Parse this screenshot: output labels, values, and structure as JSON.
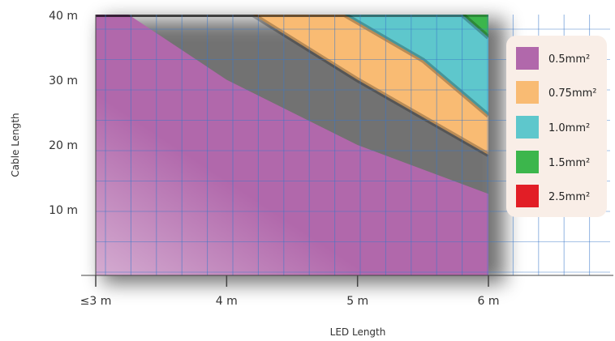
{
  "chart_data": {
    "type": "area",
    "title": "",
    "xlabel": "LED Length",
    "ylabel": "Cable Length",
    "x_ticks": [
      "≤3 m",
      "4 m",
      "5 m",
      "6 m"
    ],
    "y_ticks": [
      "10 m",
      "20 m",
      "30 m",
      "40 m"
    ],
    "xlim": [
      3,
      6
    ],
    "ylim": [
      0,
      40
    ],
    "grid": true,
    "legend_position": "right",
    "series": [
      {
        "name": "0.5mm²",
        "color": "#b168ab",
        "x": [
          3,
          3.25,
          4,
          5,
          6
        ],
        "y": [
          40,
          40,
          30,
          20,
          12.5
        ]
      },
      {
        "name": "0.75mm²",
        "color": "#f9bb73",
        "x": [
          3,
          4.2,
          5,
          6
        ],
        "y": [
          40,
          40,
          30,
          18.5
        ]
      },
      {
        "name": "1.0mm²",
        "color": "#5ec7cc",
        "x": [
          3,
          4.9,
          5.5,
          6
        ],
        "y": [
          40,
          40,
          33,
          24.5
        ]
      },
      {
        "name": "1.5mm²",
        "color": "#3cb64c",
        "x": [
          3,
          5.8,
          6
        ],
        "y": [
          40,
          40,
          36.5
        ]
      },
      {
        "name": "2.5mm²",
        "color": "#e21e26",
        "x": [
          3,
          6
        ],
        "y": [
          40,
          40
        ]
      }
    ]
  }
}
